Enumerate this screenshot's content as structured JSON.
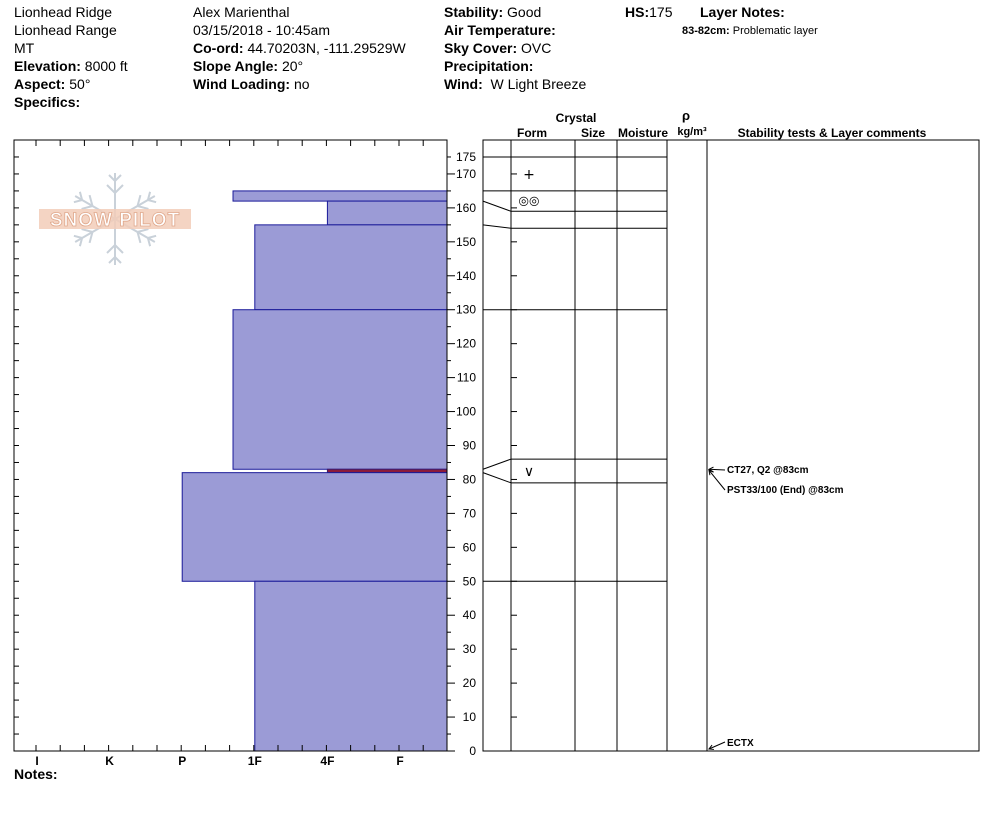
{
  "header": {
    "location": "Lionhead Ridge",
    "range": "Lionhead Range",
    "state": "MT",
    "elevation_label": "Elevation:",
    "elevation": "8000 ft",
    "aspect_label": "Aspect:",
    "aspect": "50°",
    "specifics_label": "Specifics:",
    "observer": "Alex Marienthal",
    "datetime": "03/15/2018 - 10:45am",
    "coord_label": "Co-ord:",
    "coord": "44.70203N, -111.29529W",
    "slope_label": "Slope Angle:",
    "slope": "20°",
    "wind_loading_label": "Wind Loading:",
    "wind_loading": "no",
    "stability_label": "Stability:",
    "stability": "Good",
    "air_temp_label": "Air Temperature:",
    "sky_label": "Sky Cover:",
    "sky": "OVC",
    "precip_label": "Precipitation:",
    "wind_label": "Wind:",
    "wind": "W Light Breeze",
    "hs_label": "HS:",
    "hs": "175",
    "layer_notes_label": "Layer Notes:",
    "layer_note_range": "83-82cm:",
    "layer_note_text": "Problematic layer"
  },
  "logo": {
    "text": "SNOW PILOT"
  },
  "notes_label": "Notes:",
  "chart_data": {
    "type": "bar",
    "subtype": "snow-profile-hardness",
    "hardness_scale": [
      "I",
      "K",
      "P",
      "1F",
      "4F",
      "F"
    ],
    "hardness_note": "index: I=1, K=2, P=3, 1F=4, 4F=5, F=6 (left to right)",
    "y_axis": {
      "min": 0,
      "max": 180,
      "ticks": [
        0,
        10,
        20,
        30,
        40,
        50,
        60,
        70,
        80,
        90,
        100,
        110,
        120,
        130,
        140,
        150,
        160,
        170,
        175
      ]
    },
    "layers": [
      {
        "top": 175,
        "bottom": 165,
        "hardness": 6.65
      },
      {
        "top": 165,
        "bottom": 162,
        "hardness": 3.7
      },
      {
        "top": 162,
        "bottom": 155,
        "hardness": 5.0
      },
      {
        "top": 155,
        "bottom": 130,
        "hardness": 4.0
      },
      {
        "top": 130,
        "bottom": 83,
        "hardness": 3.7
      },
      {
        "top": 83,
        "bottom": 82,
        "hardness": 5.0,
        "highlight": true
      },
      {
        "top": 82,
        "bottom": 50,
        "hardness": 3.0
      },
      {
        "top": 50,
        "bottom": 0,
        "hardness": 4.0
      }
    ],
    "table_columns": {
      "form": "Form",
      "crystal": "Crystal",
      "size": "Size",
      "moisture": "Moisture",
      "rho": "ρ",
      "density_unit": "kg/m³",
      "comments": "Stability tests & Layer comments"
    },
    "boundaries": [
      175,
      165,
      159,
      154,
      130,
      86,
      79,
      50
    ],
    "forms": [
      {
        "symbol": "+",
        "depth": 170
      },
      {
        "symbol": "◎◎",
        "depth": 162.5
      },
      {
        "symbol": "∨",
        "depth": 82.5
      }
    ],
    "stability_tests": [
      {
        "text": "CT27, Q2 @83cm",
        "depth": 83
      },
      {
        "text": "PST33/100 (End) @83cm",
        "depth": 83
      },
      {
        "text": "ECTX",
        "depth": 0
      }
    ]
  }
}
